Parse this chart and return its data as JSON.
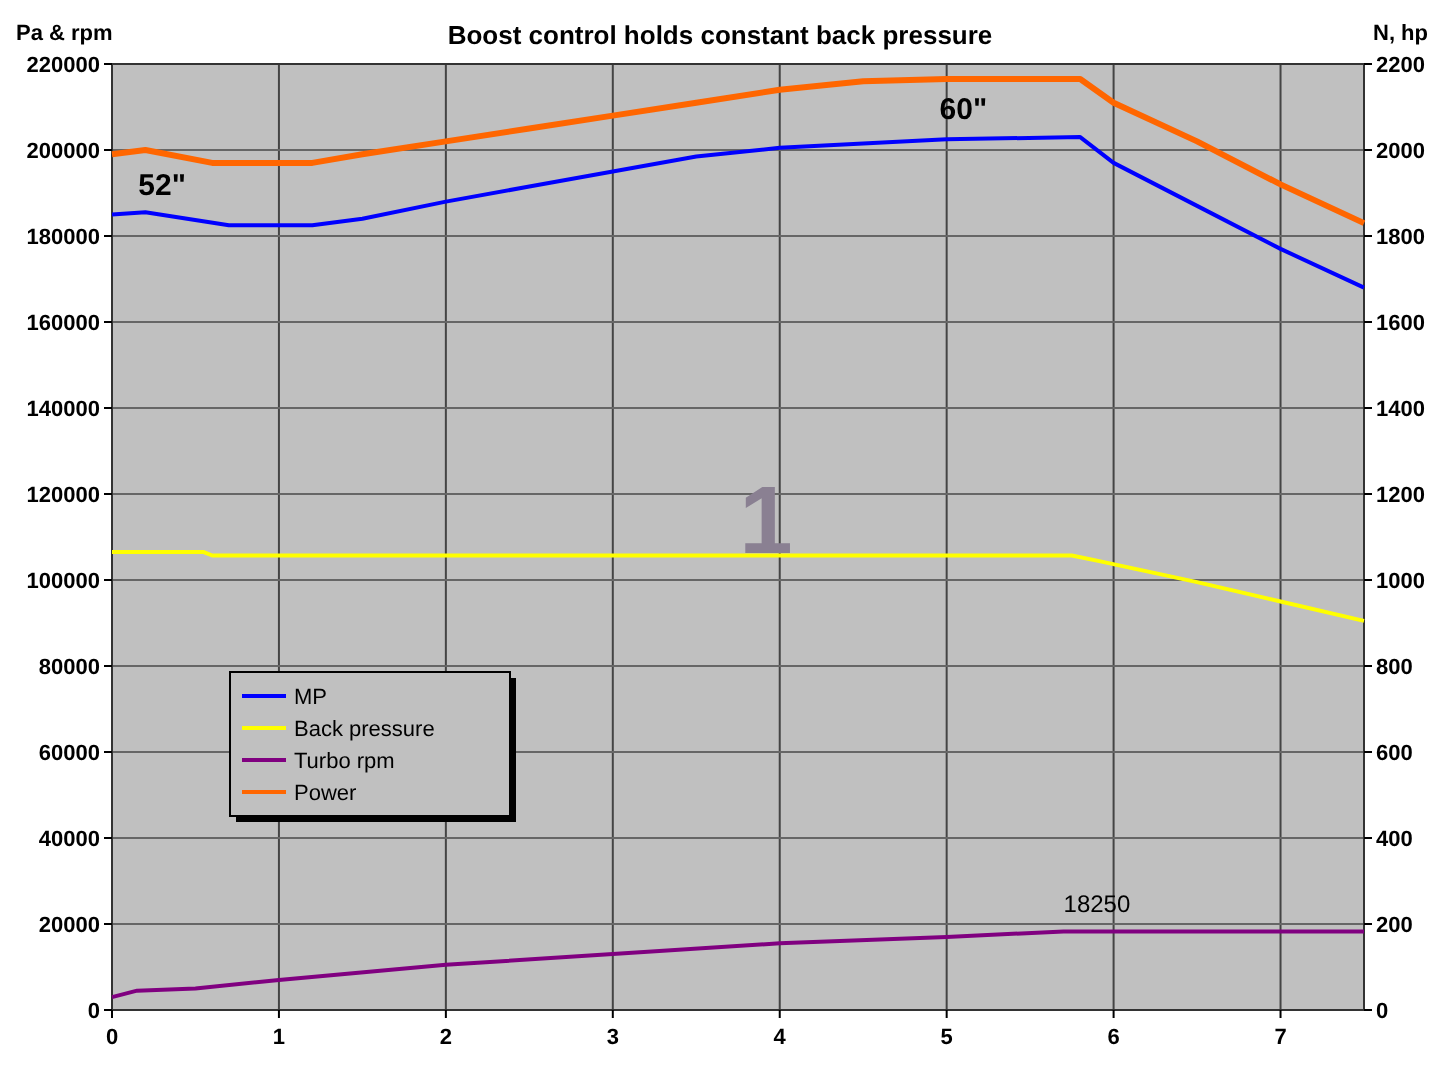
{
  "chart_data": {
    "type": "line",
    "title": "Boost control holds constant back pressure",
    "ylabel": "Pa & rpm",
    "y2label": "N, hp",
    "xlim": [
      0,
      7.5
    ],
    "xticks": [
      0,
      1,
      2,
      3,
      4,
      5,
      6,
      7
    ],
    "ylim": [
      0,
      220000
    ],
    "yticks": [
      0,
      20000,
      40000,
      60000,
      80000,
      100000,
      120000,
      140000,
      160000,
      180000,
      200000,
      220000
    ],
    "y2lim": [
      0,
      2200
    ],
    "y2ticks": [
      0,
      200,
      400,
      600,
      800,
      1000,
      1200,
      1400,
      1600,
      1800,
      2000,
      2200
    ],
    "grid": true,
    "legend": "left",
    "marker": "none",
    "line_style": "solid",
    "series": [
      {
        "name": "MP",
        "color": "#0000ff",
        "x": [
          0,
          0.2,
          0.7,
          1.2,
          1.5,
          2,
          2.5,
          3,
          3.5,
          4,
          4.5,
          5,
          5.8,
          6,
          6.5,
          7,
          7.5
        ],
        "values": [
          185000,
          185500,
          182500,
          182500,
          184000,
          188000,
          191500,
          195000,
          198500,
          200500,
          201500,
          202500,
          203000,
          197000,
          187000,
          177000,
          168000
        ]
      },
      {
        "name": "Back pressure",
        "color": "#ffff00",
        "x": [
          0,
          0.55,
          0.6,
          5.75,
          5.9,
          6.5,
          7,
          7.5
        ],
        "values": [
          106500,
          106500,
          105700,
          105700,
          104500,
          99500,
          95000,
          90500
        ]
      },
      {
        "name": "Turbo rpm",
        "color": "#800080",
        "x": [
          0,
          0.15,
          0.5,
          1,
          2,
          3,
          4,
          5,
          5.7,
          7.5
        ],
        "values": [
          3000,
          4500,
          5000,
          7000,
          10500,
          13000,
          15500,
          17000,
          18250,
          18250
        ]
      },
      {
        "name": "Power",
        "color": "#ff6600",
        "axis": "y2",
        "x": [
          0,
          0.2,
          0.6,
          1.2,
          1.5,
          2,
          2.5,
          3,
          3.5,
          4,
          4.5,
          5,
          5.8,
          6,
          6.5,
          7,
          7.5
        ],
        "values": [
          1990,
          2000,
          1970,
          1970,
          1990,
          2020,
          2050,
          2080,
          2110,
          2140,
          2160,
          2165,
          2165,
          2110,
          2020,
          1920,
          1830
        ]
      }
    ],
    "annotations": [
      {
        "text": "52\"",
        "x": 0.3,
        "y": 185000
      },
      {
        "text": "60\"",
        "x": 5.1,
        "y": 202500
      },
      {
        "text": "18250",
        "x": 5.9,
        "y": 18250
      },
      "1"
    ]
  }
}
